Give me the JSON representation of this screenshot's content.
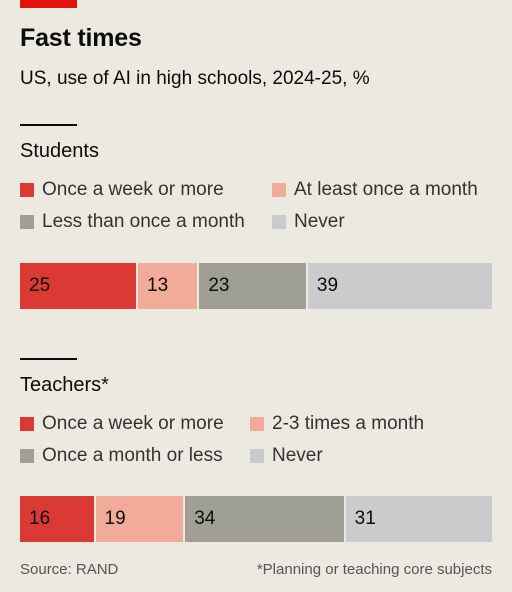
{
  "title": "Fast times",
  "subtitle": "US, use of AI in high schools, 2024-25, %",
  "source": "Source: RAND",
  "footnote": "*Planning or teaching core subjects",
  "colors": {
    "accent": "#e3120b",
    "weekly": "#db3a34",
    "monthly": "#f2ab98",
    "less": "#a09f93",
    "never": "#cbcbcd"
  },
  "chart_data": [
    {
      "type": "bar",
      "stacked": true,
      "orientation": "horizontal",
      "title": "Students",
      "xlim": [
        0,
        100
      ],
      "series": [
        {
          "name": "Once a week or more",
          "value": 25,
          "color": "#db3a34"
        },
        {
          "name": "At least once a month",
          "value": 13,
          "color": "#f2ab98"
        },
        {
          "name": "Less than once a month",
          "value": 23,
          "color": "#a09f93"
        },
        {
          "name": "Never",
          "value": 39,
          "color": "#cbcbcd"
        }
      ]
    },
    {
      "type": "bar",
      "stacked": true,
      "orientation": "horizontal",
      "title": "Teachers*",
      "xlim": [
        0,
        100
      ],
      "series": [
        {
          "name": "Once a week or more",
          "value": 16,
          "color": "#db3a34"
        },
        {
          "name": "2-3 times a month",
          "value": 19,
          "color": "#f2ab98"
        },
        {
          "name": "Once a month or less",
          "value": 34,
          "color": "#a09f93"
        },
        {
          "name": "Never",
          "value": 31,
          "color": "#cbcbcd"
        }
      ]
    }
  ]
}
